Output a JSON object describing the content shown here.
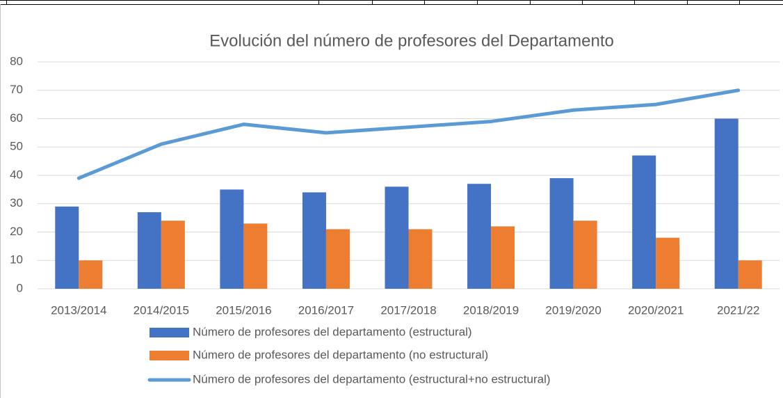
{
  "chart_data": {
    "type": "bar_line",
    "title": "Evolución del número de profesores del Departamento",
    "categories": [
      "2013/2014",
      "2014/2015",
      "2015/2016",
      "2016/2017",
      "2017/2018",
      "2018/2019",
      "2019/2020",
      "2020/2021",
      "2021/22"
    ],
    "series": [
      {
        "name": "Número de profesores del departamento (estructural)",
        "type": "bar",
        "color": "#4472c4",
        "values": [
          29,
          27,
          35,
          34,
          36,
          37,
          39,
          47,
          60
        ]
      },
      {
        "name": "Número de profesores del departamento (no estructural)",
        "type": "bar",
        "color": "#ed7d31",
        "values": [
          10,
          24,
          23,
          21,
          21,
          22,
          24,
          18,
          10
        ]
      },
      {
        "name": "Número de profesores del departamento (estructural+no estructural)",
        "type": "line",
        "color": "#5b9bd5",
        "values": [
          39,
          51,
          58,
          55,
          57,
          59,
          63,
          65,
          70
        ]
      }
    ],
    "ylim": [
      0,
      80
    ],
    "yticks": [
      0,
      10,
      20,
      30,
      40,
      50,
      60,
      70,
      80
    ],
    "grid": true,
    "legend": "bottom"
  }
}
